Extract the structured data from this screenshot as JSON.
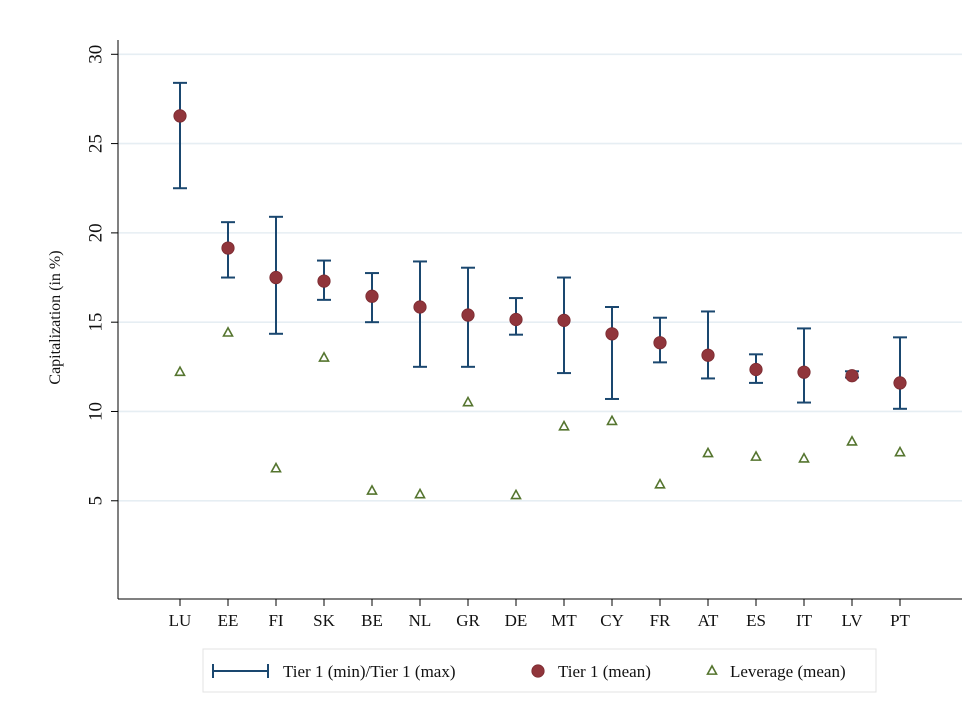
{
  "chart_data": {
    "type": "scatter",
    "title": "",
    "xlabel": "",
    "ylabel": "Capitalization (in %)",
    "categories": [
      "LU",
      "EE",
      "FI",
      "SK",
      "BE",
      "NL",
      "GR",
      "DE",
      "MT",
      "CY",
      "FR",
      "AT",
      "ES",
      "IT",
      "LV",
      "PT"
    ],
    "y_ticks": [
      "5",
      "10",
      "15",
      "20",
      "25",
      "30"
    ],
    "ylim": [
      -0.5,
      30.8
    ],
    "grid": true,
    "legend_position": "bottom",
    "series": [
      {
        "name": "Tier 1 (min)/Tier 1 (max)",
        "type": "range",
        "color": "#1a476f",
        "min": [
          22.5,
          17.5,
          14.35,
          16.25,
          15.0,
          12.5,
          12.5,
          14.3,
          12.15,
          10.7,
          12.75,
          11.85,
          11.6,
          10.5,
          11.9,
          10.15
        ],
        "max": [
          28.4,
          20.6,
          20.9,
          18.45,
          17.75,
          18.4,
          18.05,
          16.35,
          17.5,
          15.85,
          15.25,
          15.6,
          13.2,
          14.65,
          12.25,
          14.15
        ]
      },
      {
        "name": "Tier 1 (mean)",
        "type": "marker-circle",
        "color": "#90353b",
        "values": [
          26.55,
          19.15,
          17.5,
          17.3,
          16.45,
          15.85,
          15.4,
          15.15,
          15.1,
          14.35,
          13.85,
          13.15,
          12.35,
          12.2,
          12.0,
          11.6
        ]
      },
      {
        "name": "Leverage (mean)",
        "type": "marker-triangle",
        "color": "#55752f",
        "values": [
          12.2,
          14.4,
          6.8,
          13.0,
          5.55,
          5.35,
          10.5,
          5.3,
          9.15,
          9.45,
          5.9,
          7.65,
          7.45,
          7.35,
          8.3,
          7.7
        ]
      }
    ]
  }
}
